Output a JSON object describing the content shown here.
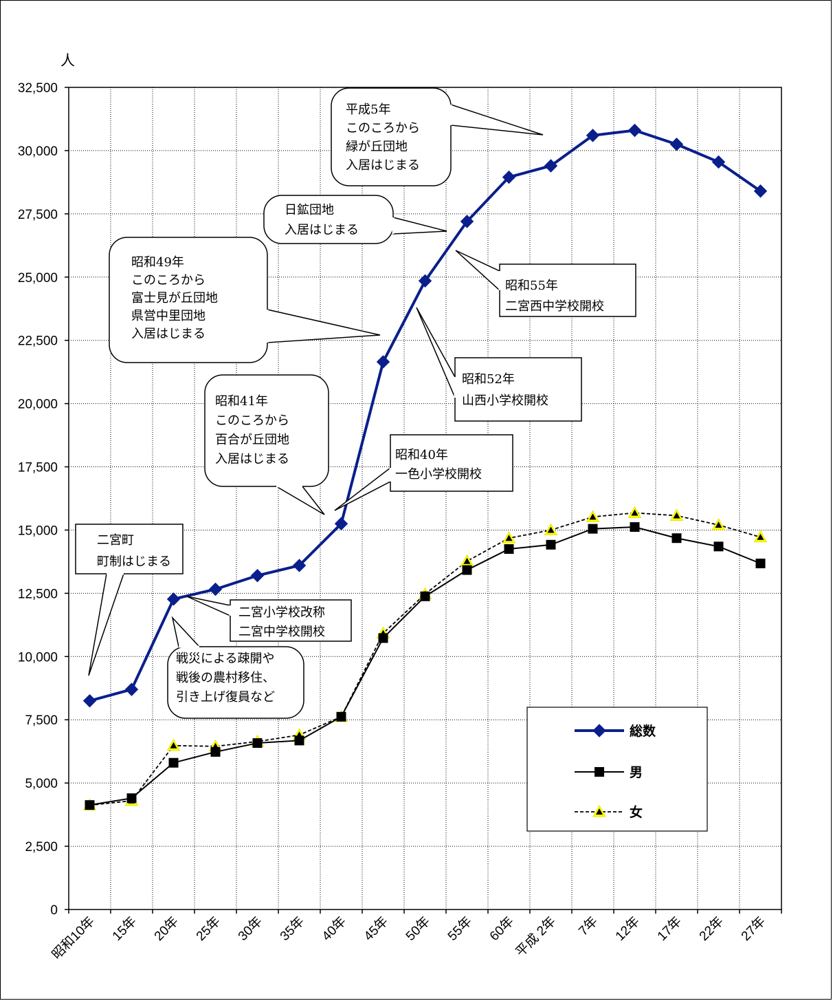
{
  "chart_data": {
    "type": "line",
    "ylabel": "人",
    "ylim": [
      0,
      32500
    ],
    "yticks": [
      "0",
      "2,500",
      "5,000",
      "7,500",
      "10,000",
      "12,500",
      "15,000",
      "17,500",
      "20,000",
      "22,500",
      "25,000",
      "27,500",
      "30,000",
      "32,500"
    ],
    "categories": [
      "昭和10年",
      "15年",
      "20年",
      "25年",
      "30年",
      "35年",
      "40年",
      "45年",
      "50年",
      "55年",
      "60年",
      "平成 2年",
      "7年",
      "12年",
      "17年",
      "22年",
      "27年"
    ],
    "grid": true,
    "legend_position": "bottom-right",
    "series": [
      {
        "name": "総数",
        "color": "#0a1f8c",
        "marker": "diamond",
        "values": [
          8250,
          8700,
          12270,
          12660,
          13200,
          13600,
          15250,
          21650,
          24850,
          27200,
          28950,
          29400,
          30600,
          30800,
          30250,
          29550,
          28400
        ]
      },
      {
        "name": "男",
        "color": "#000000",
        "marker": "square",
        "values": [
          4130,
          4400,
          5800,
          6230,
          6580,
          6680,
          7620,
          10730,
          12380,
          13420,
          14250,
          14420,
          15050,
          15120,
          14680,
          14350,
          13680
        ]
      },
      {
        "name": "女",
        "color": "#000000",
        "marker": "triangle",
        "marker_fill": "#ffff00",
        "values": [
          4120,
          4300,
          6480,
          6450,
          6640,
          6900,
          7620,
          10920,
          12470,
          13770,
          14680,
          15000,
          15520,
          15680,
          15570,
          15200,
          14720
        ]
      }
    ],
    "annotations": [
      {
        "lines": [
          "二宮町",
          "町制はじまる"
        ]
      },
      {
        "lines": [
          "二宮小学校改称",
          "二宮中学校開校"
        ]
      },
      {
        "lines": [
          "戦災による疎開や",
          "戦後の農村移住、",
          "引き上げ復員など"
        ]
      },
      {
        "lines": [
          "昭和41年",
          "このころから",
          "百合が丘団地",
          "入居はじまる"
        ]
      },
      {
        "lines": [
          "昭和40年",
          "一色小学校開校"
        ]
      },
      {
        "lines": [
          "昭和49年",
          "このころから",
          "富士見が丘団地",
          "県営中里団地",
          "入居はじまる"
        ]
      },
      {
        "lines": [
          "昭和52年",
          "山西小学校開校"
        ]
      },
      {
        "lines": [
          "昭和55年",
          "二宮西中学校開校"
        ]
      },
      {
        "lines": [
          "日鉱団地",
          "入居はじまる"
        ]
      },
      {
        "lines": [
          "平成5年",
          "このころから",
          "緑が丘団地",
          "入居はじまる"
        ]
      }
    ]
  }
}
